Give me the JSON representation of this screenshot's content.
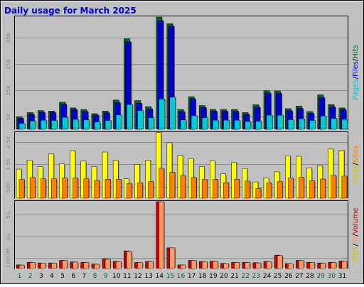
{
  "colors": {
    "background": "#c0c0c0",
    "grid": "#8c8c8c",
    "title": "#0000cc",
    "hits": "#006633",
    "files": "#0000cc",
    "pages": "#00cccc",
    "visits": "#ffff00",
    "sites": "#ff8000",
    "volume": "#cc0000",
    "in": "#ff9966",
    "out": "#c8c800",
    "weekday": "#006633",
    "weekend": "#006633"
  },
  "chart_data": {
    "type": "bar",
    "title": "Daily usage for March 2025",
    "categories": [
      "1",
      "2",
      "3",
      "4",
      "5",
      "6",
      "7",
      "8",
      "9",
      "10",
      "11",
      "12",
      "13",
      "14",
      "15",
      "16",
      "17",
      "18",
      "19",
      "20",
      "21",
      "22",
      "23",
      "24",
      "25",
      "26",
      "27",
      "28",
      "29",
      "30",
      "31"
    ],
    "weekend_days": [
      "1",
      "2",
      "8",
      "9",
      "15",
      "16",
      "22",
      "23",
      "29",
      "30"
    ],
    "panels": [
      {
        "id": "hits_panel",
        "ylim": [
          0,
          43000
        ],
        "yticks": [
          {
            "value": 5000,
            "label": "5k"
          },
          {
            "value": 15000,
            "label": "15k"
          },
          {
            "value": 25000,
            "label": "25k"
          },
          {
            "value": 35000,
            "label": "35k"
          }
        ],
        "legend": [
          {
            "text": "Hits",
            "color": "#006633"
          },
          {
            "text": "/",
            "color": "#000000"
          },
          {
            "text": "Files",
            "color": "#0000cc"
          },
          {
            "text": "/",
            "color": "#000000"
          },
          {
            "text": "Pages",
            "color": "#00cccc"
          }
        ],
        "series": [
          {
            "name": "Hits",
            "color": "#006633",
            "values": [
              4800,
              6400,
              7200,
              7000,
              10400,
              8200,
              7600,
              6000,
              7000,
              11200,
              34700,
              11000,
              8700,
              43000,
              40500,
              7600,
              12500,
              9100,
              7600,
              7600,
              7600,
              6400,
              9400,
              14800,
              14700,
              7900,
              8900,
              6800,
              13200,
              9500,
              8200
            ]
          },
          {
            "name": "Files",
            "color": "#0000cc",
            "values": [
              4200,
              5800,
              6500,
              6400,
              9600,
              7600,
              6800,
              5400,
              6300,
              10200,
              33500,
              10000,
              7800,
              41600,
              39500,
              6800,
              11700,
              8300,
              6900,
              6900,
              6900,
              5800,
              8500,
              13900,
              13800,
              7100,
              8000,
              6100,
              12100,
              8600,
              7500
            ]
          },
          {
            "name": "Pages",
            "color": "#00cccc",
            "values": [
              2200,
              3200,
              3500,
              3400,
              4600,
              3800,
              3600,
              2800,
              3400,
              5500,
              9500,
              7200,
              4400,
              11600,
              12300,
              3600,
              5200,
              4400,
              3500,
              3500,
              3500,
              3000,
              3100,
              5400,
              5400,
              3700,
              4000,
              3400,
              5100,
              4200,
              3800
            ]
          }
        ]
      },
      {
        "id": "visits_panel",
        "ylim": [
          0,
          2900
        ],
        "yticks": [
          {
            "value": 500,
            "label": "500"
          },
          {
            "value": 1500,
            "label": "1.5k"
          },
          {
            "value": 2500,
            "label": "2.5k"
          }
        ],
        "legend": [
          {
            "text": "Sites",
            "color": "#ff8000"
          },
          {
            "text": "/",
            "color": "#000000"
          },
          {
            "text": "Visits",
            "color": "#c8c800"
          }
        ],
        "series": [
          {
            "name": "Visits",
            "color": "#ffff00",
            "values": [
              1290,
              1690,
              1400,
              1970,
              1520,
              2110,
              1650,
              1400,
              2050,
              1680,
              860,
              1500,
              1680,
              2920,
              2460,
              1900,
              1760,
              1400,
              1660,
              1080,
              1580,
              1320,
              720,
              900,
              1170,
              1880,
              1860,
              1340,
              1450,
              2180,
              2130
            ]
          },
          {
            "name": "Sites",
            "color": "#ff8000",
            "values": [
              830,
              920,
              860,
              860,
              900,
              900,
              860,
              790,
              840,
              840,
              660,
              690,
              740,
              1330,
              1150,
              1010,
              920,
              830,
              840,
              690,
              840,
              760,
              430,
              680,
              740,
              900,
              930,
              780,
              850,
              1020,
              980
            ]
          }
        ]
      },
      {
        "id": "volume_panel",
        "ylim": [
          0,
          6200
        ],
        "yticks": [
          {
            "value": 1000,
            "label": "1000M"
          },
          {
            "value": 3000,
            "label": "3G"
          },
          {
            "value": 5000,
            "label": "5G"
          }
        ],
        "legend": [
          {
            "text": "Volume",
            "color": "#cc0000"
          },
          {
            "text": "/",
            "color": "#000000"
          },
          {
            "text": "IN",
            "color": "#ff9966"
          },
          {
            "text": "/",
            "color": "#000000"
          },
          {
            "text": "OUT",
            "color": "#c8c800"
          }
        ],
        "series": [
          {
            "name": "Volume",
            "color": "#cc0000",
            "values": [
              340,
              580,
              520,
              520,
              760,
              620,
              580,
              420,
              900,
              660,
              1640,
              560,
              660,
              6200,
              1920,
              340,
              760,
              660,
              680,
              480,
              580,
              580,
              540,
              660,
              1240,
              460,
              760,
              580,
              520,
              580,
              700
            ]
          },
          {
            "name": "IN",
            "color": "#ff9966",
            "values": [
              320,
              560,
              500,
              500,
              740,
              600,
              560,
              400,
              860,
              640,
              1580,
              540,
              640,
              6200,
              1920,
              330,
              740,
              640,
              660,
              460,
              560,
              560,
              520,
              640,
              1200,
              440,
              740,
              560,
              500,
              560,
              680
            ]
          }
        ]
      }
    ]
  }
}
